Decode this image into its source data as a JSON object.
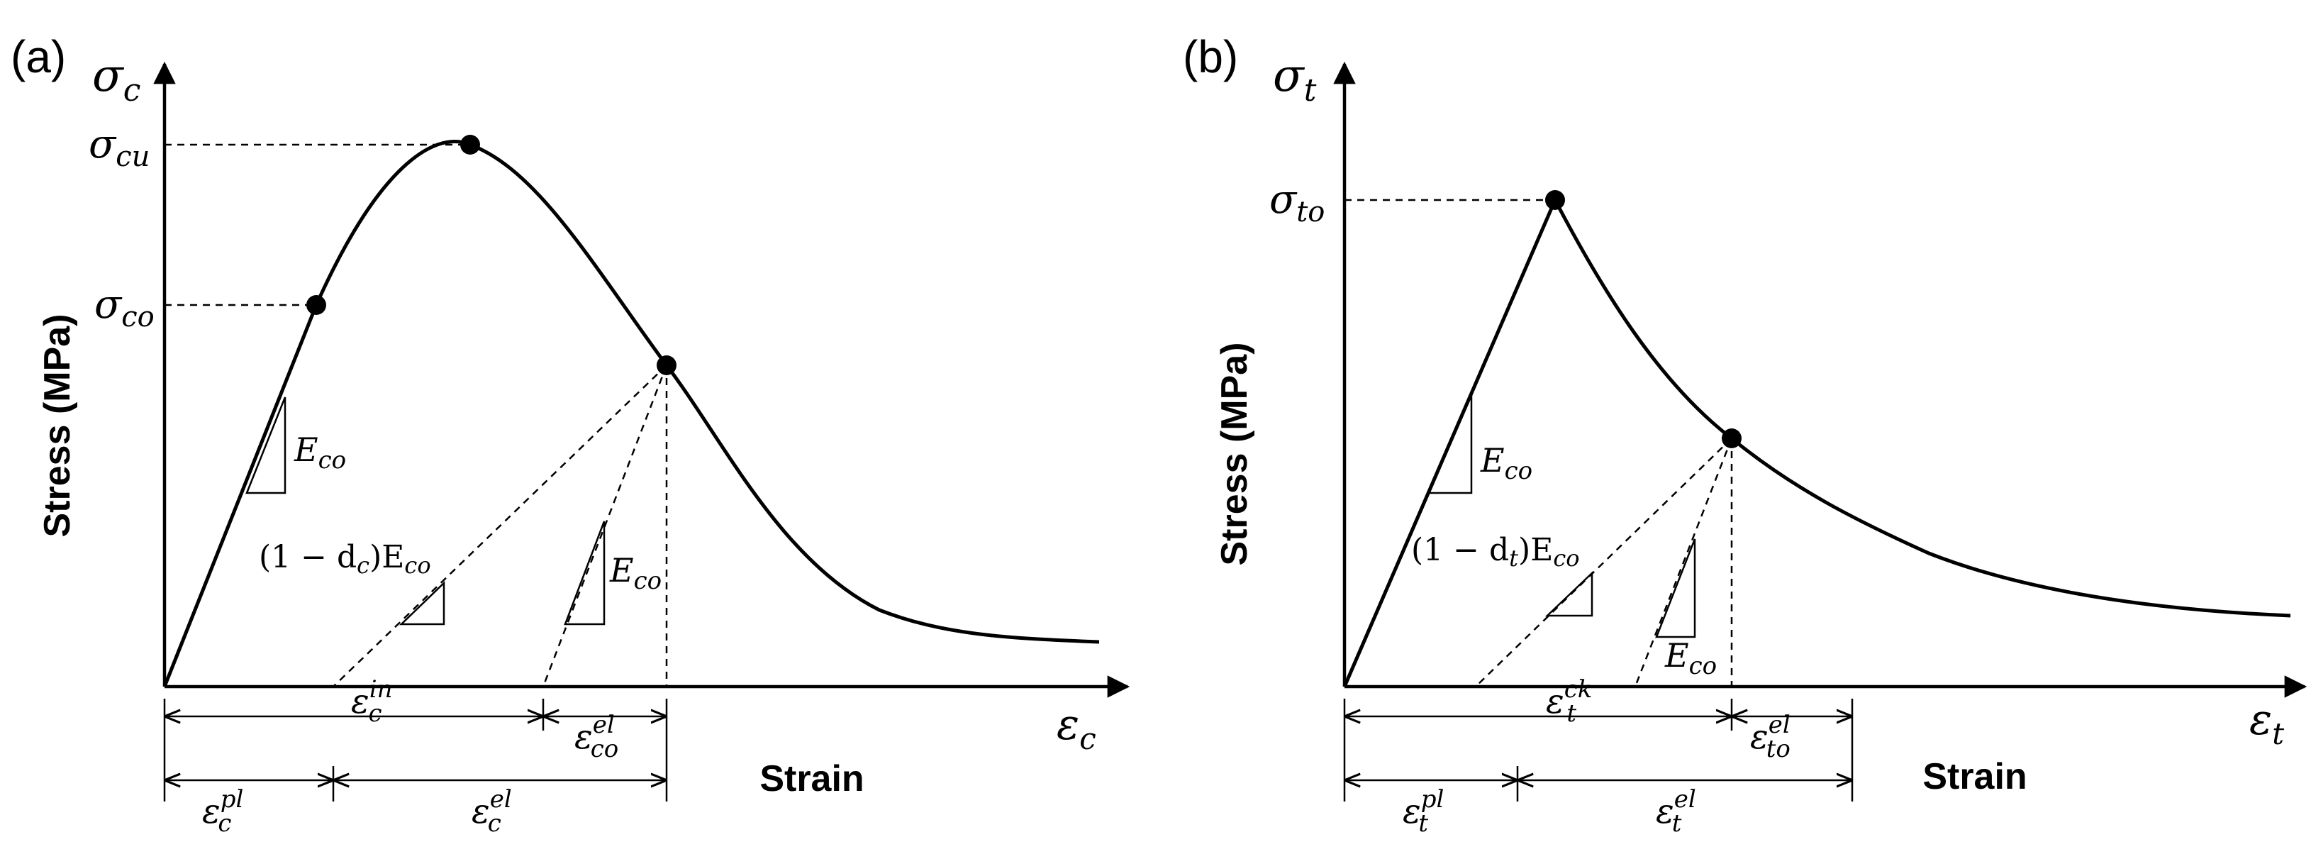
{
  "panel_a": {
    "panel_label": "(a)",
    "y_axis_symbol": {
      "main": "σ",
      "sub": "c"
    },
    "x_axis_symbol": {
      "main": "ε",
      "sub": "c"
    },
    "y_axis_label": "Stress (MPa)",
    "x_axis_label": "Strain",
    "peak_stress": {
      "main": "σ",
      "sub": "cu"
    },
    "initial_yield_stress": {
      "main": "σ",
      "sub": "co"
    },
    "initial_modulus": {
      "main": "E",
      "sub": "co"
    },
    "damaged_modulus": {
      "prefix": "(1 − d",
      "prefix_sub": "c",
      "suffix": ")E",
      "suffix_sub": "co"
    },
    "unloading_modulus": {
      "main": "E",
      "sub": "co"
    },
    "inelastic_strain": {
      "main": "ε",
      "sub": "c",
      "sup": "in"
    },
    "elastic_strain_undamaged": {
      "main": "ε",
      "sub": "co",
      "sup": "el"
    },
    "plastic_strain": {
      "main": "ε",
      "sub": "c",
      "sup": "pl"
    },
    "elastic_strain": {
      "main": "ε",
      "sub": "c",
      "sup": "el"
    }
  },
  "panel_b": {
    "panel_label": "(b)",
    "y_axis_symbol": {
      "main": "σ",
      "sub": "t"
    },
    "x_axis_symbol": {
      "main": "ε",
      "sub": "t"
    },
    "y_axis_label": "Stress (MPa)",
    "x_axis_label": "Strain",
    "peak_stress": {
      "main": "σ",
      "sub": "to"
    },
    "initial_modulus": {
      "main": "E",
      "sub": "co"
    },
    "damaged_modulus": {
      "prefix": "(1 − d",
      "prefix_sub": "t",
      "suffix": ")E",
      "suffix_sub": "co"
    },
    "unloading_modulus": {
      "main": "E",
      "sub": "co"
    },
    "cracking_strain": {
      "main": "ε",
      "sub": "t",
      "sup": "ck"
    },
    "elastic_strain_undamaged": {
      "main": "ε",
      "sub": "to",
      "sup": "el"
    },
    "plastic_strain": {
      "main": "ε",
      "sub": "t",
      "sup": "pl"
    },
    "elastic_strain": {
      "main": "ε",
      "sub": "t",
      "sup": "el"
    }
  }
}
